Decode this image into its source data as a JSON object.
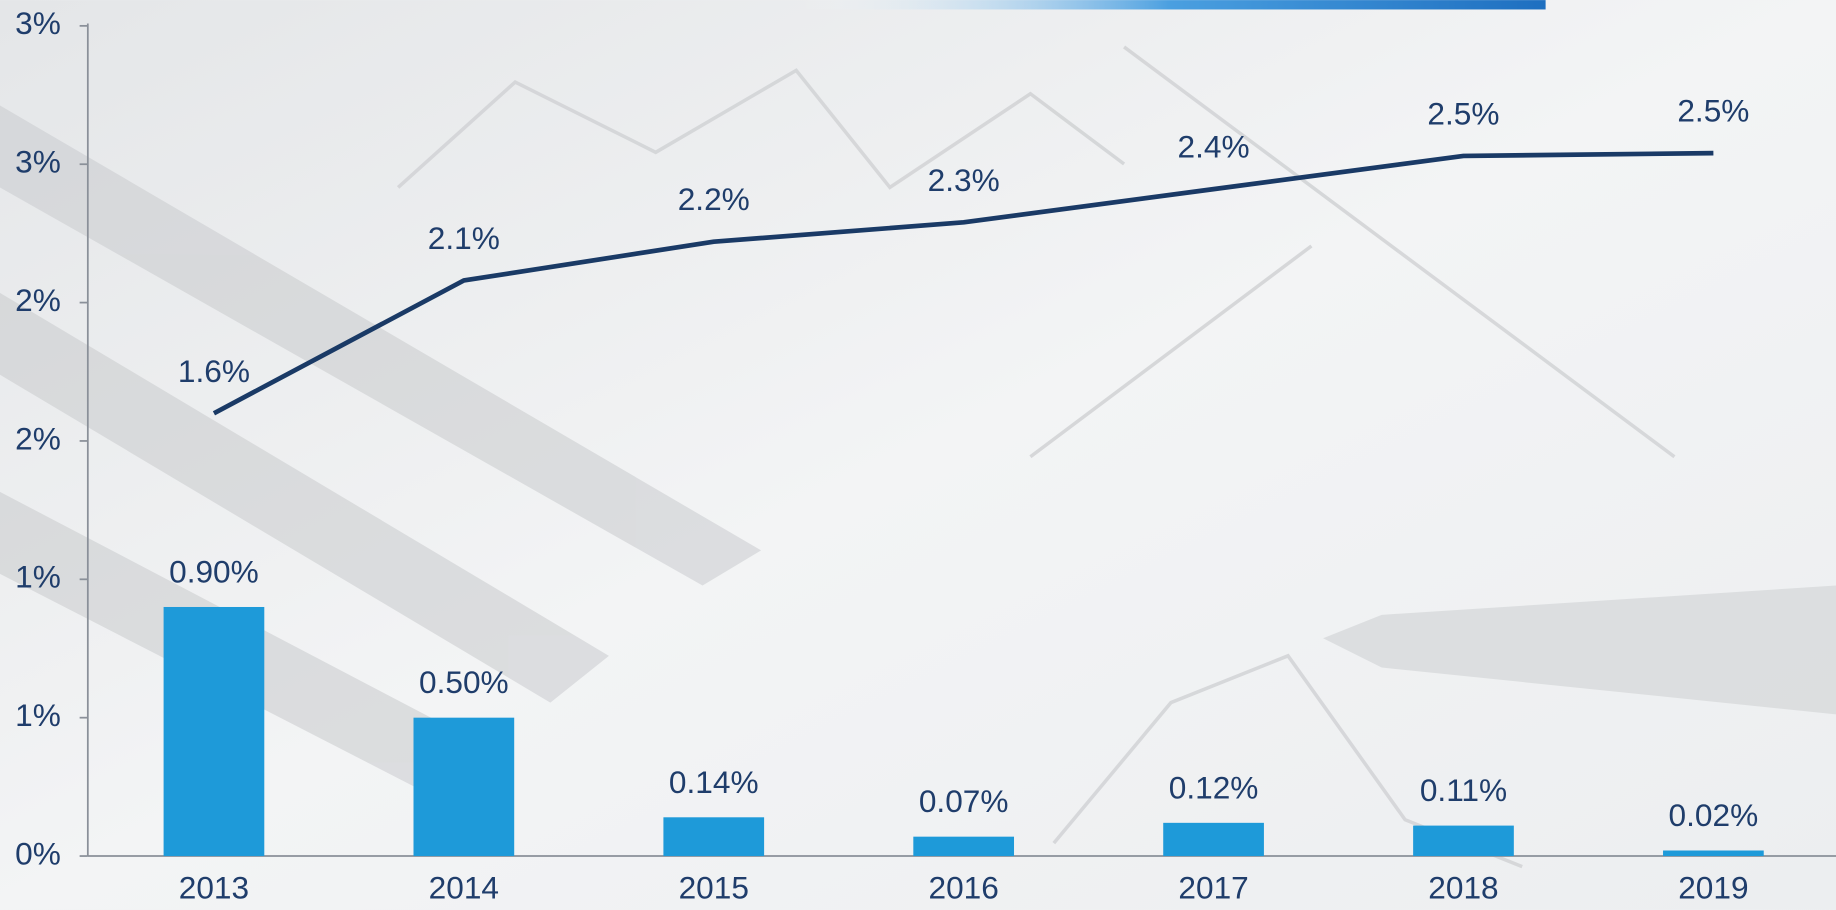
{
  "chart_data": {
    "type": "bar",
    "categories": [
      "2013",
      "2014",
      "2015",
      "2016",
      "2017",
      "2018",
      "2019"
    ],
    "series": [
      {
        "type": "bar",
        "color": "#1e9ad9",
        "values": [
          0.9,
          0.5,
          0.14,
          0.07,
          0.12,
          0.11,
          0.02
        ],
        "value_labels": [
          "0.90%",
          "0.50%",
          "0.14%",
          "0.07%",
          "0.12%",
          "0.11%",
          "0.02%"
        ]
      },
      {
        "type": "line",
        "color": "#1a3a66",
        "values": [
          1.6,
          2.08,
          2.22,
          2.29,
          2.41,
          2.53,
          2.54
        ],
        "value_labels": [
          "1.6%",
          "2.1%",
          "2.2%",
          "2.3%",
          "2.4%",
          "2.5%",
          "2.5%"
        ]
      }
    ],
    "ylim": [
      0,
      3
    ],
    "yticks": [
      {
        "value": 0,
        "label": "0%"
      },
      {
        "value": 0.5,
        "label": "1%"
      },
      {
        "value": 1,
        "label": "1%"
      },
      {
        "value": 1.5,
        "label": "2%"
      },
      {
        "value": 2,
        "label": "2%"
      },
      {
        "value": 2.5,
        "label": "3%"
      },
      {
        "value": 3,
        "label": "3%"
      }
    ],
    "grid": false
  }
}
